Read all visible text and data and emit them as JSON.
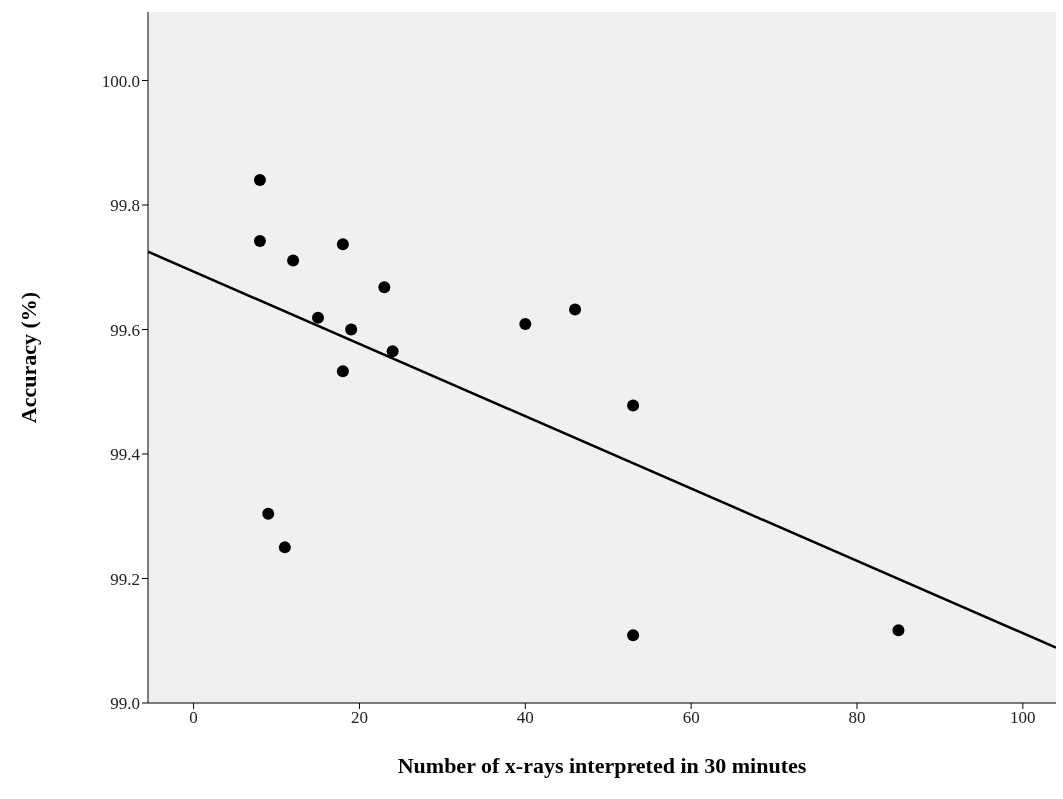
{
  "chart_data": {
    "type": "scatter",
    "xlabel": "Number of x-rays interpreted in 30 minutes",
    "ylabel": "Accuracy (%)",
    "xlim": [
      -5.5,
      104
    ],
    "xticks": [
      0,
      20,
      40,
      60,
      80,
      100
    ],
    "ylim": [
      99,
      100.11
    ],
    "yticks": [
      {
        "value": 99,
        "label": "99.0"
      },
      {
        "value": 99.2,
        "label": "99.2"
      },
      {
        "value": 99.4,
        "label": "99.4"
      },
      {
        "value": 99.6,
        "label": "99.6"
      },
      {
        "value": 99.8,
        "label": "99.8"
      },
      {
        "value": 100,
        "label": "100.0"
      }
    ],
    "grid": false,
    "marker": "circle",
    "series": [
      {
        "color": "#000000",
        "x": [
          8,
          8,
          12,
          18,
          23,
          15,
          19,
          24,
          18,
          9,
          11,
          40,
          46,
          53,
          53,
          85
        ],
        "values": [
          99.84,
          99.742,
          99.711,
          99.737,
          99.668,
          99.619,
          99.6,
          99.565,
          99.533,
          99.304,
          99.25,
          99.609,
          99.632,
          99.478,
          99.109,
          99.117
        ]
      },
      {
        "type": "line",
        "color": "#000000",
        "line_style": "solid",
        "marker": "none",
        "x": [
          -5.5,
          104
        ],
        "values": [
          99.725,
          99.089
        ]
      }
    ]
  }
}
